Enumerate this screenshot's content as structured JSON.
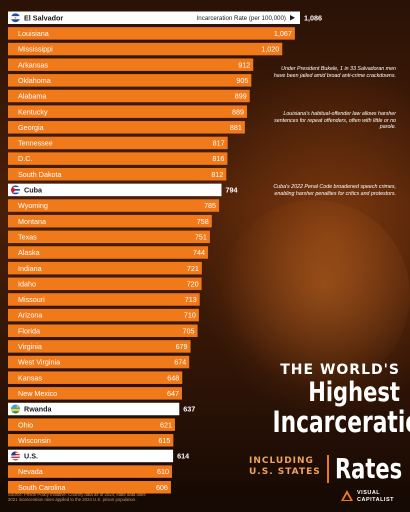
{
  "chart_data": {
    "type": "bar",
    "orientation": "horizontal",
    "unit_label": "Incarceration Rate (per 100,000)",
    "categories": [
      "El Salvador",
      "Louisiana",
      "Mississippi",
      "Arkansas",
      "Oklahoma",
      "Alabama",
      "Kentucky",
      "Georgia",
      "Tennessee",
      "D.C.",
      "South Dakota",
      "Cuba",
      "Wyoming",
      "Montana",
      "Texas",
      "Alaska",
      "Indiana",
      "Idaho",
      "Missouri",
      "Arizona",
      "Florida",
      "Virginia",
      "West Virginia",
      "Kansas",
      "New Mexico",
      "Rwanda",
      "Ohio",
      "Wisconsin",
      "U.S.",
      "Nevada",
      "South Carolina"
    ],
    "values": [
      1086,
      1067,
      1020,
      912,
      905,
      899,
      889,
      881,
      817,
      816,
      812,
      794,
      785,
      758,
      751,
      744,
      721,
      720,
      713,
      710,
      705,
      679,
      674,
      648,
      647,
      637,
      621,
      615,
      614,
      610,
      606
    ],
    "value_labels": [
      "1,086",
      "1,067",
      "1,020",
      "912",
      "905",
      "899",
      "889",
      "881",
      "817",
      "816",
      "812",
      "794",
      "785",
      "758",
      "751",
      "744",
      "721",
      "720",
      "713",
      "710",
      "705",
      "679",
      "674",
      "648",
      "647",
      "637",
      "621",
      "615",
      "614",
      "610",
      "606"
    ],
    "highlighted": [
      "El Salvador",
      "Cuba",
      "Rwanda",
      "U.S."
    ],
    "flags": {
      "El Salvador": "el-salvador-flag",
      "Cuba": "cuba-flag",
      "Rwanda": "rwanda-flag",
      "U.S.": "us-flag"
    },
    "xlim": [
      0,
      1086
    ],
    "colors": {
      "state_bar": "#f07a1a",
      "country_bar": "#ffffff",
      "state_text": "#ffffff",
      "country_text": "#1a1a1a",
      "value_text": "#ffffff"
    }
  },
  "annotations": [
    {
      "id": "el-salvador",
      "text": "Under President Bukele, 1 in 33 Salvadoran men have been jailed amid broad anti-crime crackdowns."
    },
    {
      "id": "louisiana",
      "text": "Louisiana's habitual-offender law allows harsher sentences for repeat offenders, often with little or no parole."
    },
    {
      "id": "cuba",
      "text": "Cuba's 2022 Penal Code broadened speech crimes, enabling harsher penalties for critics and protestors."
    }
  ],
  "title": {
    "line1": "THE WORLD'S",
    "line2": "Highest",
    "line3": "Incarceration",
    "line4": "Rates"
  },
  "subtitle": {
    "line1": "INCLUDING",
    "line2": "U.S. STATES"
  },
  "source": {
    "line1": "Source: Prison Policy Initiative. Country data as of 2024; state data uses",
    "line2": "2021 incarceration rates applied to the 2024 U.S. prison population."
  },
  "logo": {
    "line1": "VISUAL",
    "line2": "CAPITALIST"
  }
}
